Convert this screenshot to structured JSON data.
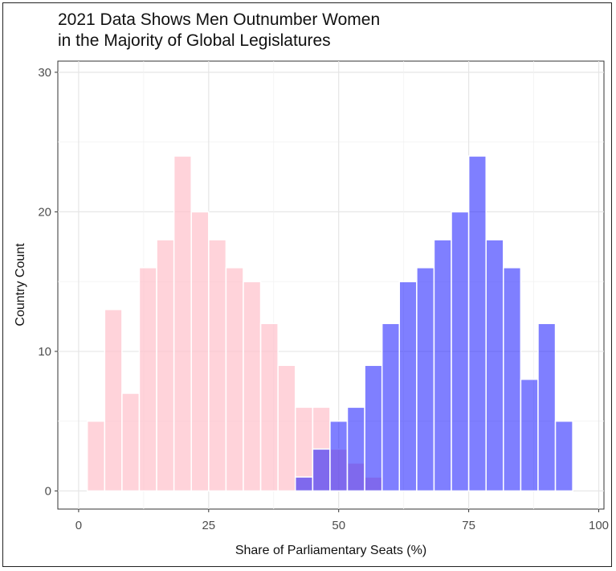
{
  "chart_data": {
    "type": "bar",
    "title": "2021 Data Shows Men Outnumber Women\nin the Majority of Global Legislatures",
    "title_lines": [
      "2021 Data Shows Men Outnumber Women",
      "in the Majority of Global Legislatures"
    ],
    "xlabel": "Share of Parliamentary Seats (%)",
    "ylabel": "Country Count",
    "xlim": [
      -4,
      101
    ],
    "ylim": [
      -1.3,
      30.8
    ],
    "x_ticks": [
      0,
      25,
      50,
      75,
      100
    ],
    "y_ticks": [
      0,
      10,
      20,
      30
    ],
    "bin_width": 3.33,
    "grid": true,
    "series": [
      {
        "color": "#ffc0cb",
        "opacity": 0.7,
        "bins": [
          {
            "x": 3.33,
            "count": 5
          },
          {
            "x": 6.67,
            "count": 13
          },
          {
            "x": 10.0,
            "count": 7
          },
          {
            "x": 13.33,
            "count": 16
          },
          {
            "x": 16.67,
            "count": 18
          },
          {
            "x": 20.0,
            "count": 24
          },
          {
            "x": 23.33,
            "count": 20
          },
          {
            "x": 26.67,
            "count": 18
          },
          {
            "x": 30.0,
            "count": 16
          },
          {
            "x": 33.33,
            "count": 15
          },
          {
            "x": 36.67,
            "count": 12
          },
          {
            "x": 40.0,
            "count": 9
          },
          {
            "x": 43.33,
            "count": 6
          },
          {
            "x": 46.67,
            "count": 6
          },
          {
            "x": 50.0,
            "count": 3
          },
          {
            "x": 53.33,
            "count": 2
          },
          {
            "x": 56.67,
            "count": 1
          }
        ]
      },
      {
        "color": "#0000ff",
        "opacity": 0.5,
        "bins": [
          {
            "x": 43.33,
            "count": 1
          },
          {
            "x": 46.67,
            "count": 3
          },
          {
            "x": 50.0,
            "count": 5
          },
          {
            "x": 53.33,
            "count": 6
          },
          {
            "x": 56.67,
            "count": 9
          },
          {
            "x": 60.0,
            "count": 12
          },
          {
            "x": 63.33,
            "count": 15
          },
          {
            "x": 66.67,
            "count": 16
          },
          {
            "x": 70.0,
            "count": 18
          },
          {
            "x": 73.33,
            "count": 20
          },
          {
            "x": 76.67,
            "count": 24
          },
          {
            "x": 80.0,
            "count": 18
          },
          {
            "x": 83.33,
            "count": 16
          },
          {
            "x": 86.67,
            "count": 8
          },
          {
            "x": 90.0,
            "count": 12
          },
          {
            "x": 93.33,
            "count": 5
          }
        ]
      }
    ]
  }
}
